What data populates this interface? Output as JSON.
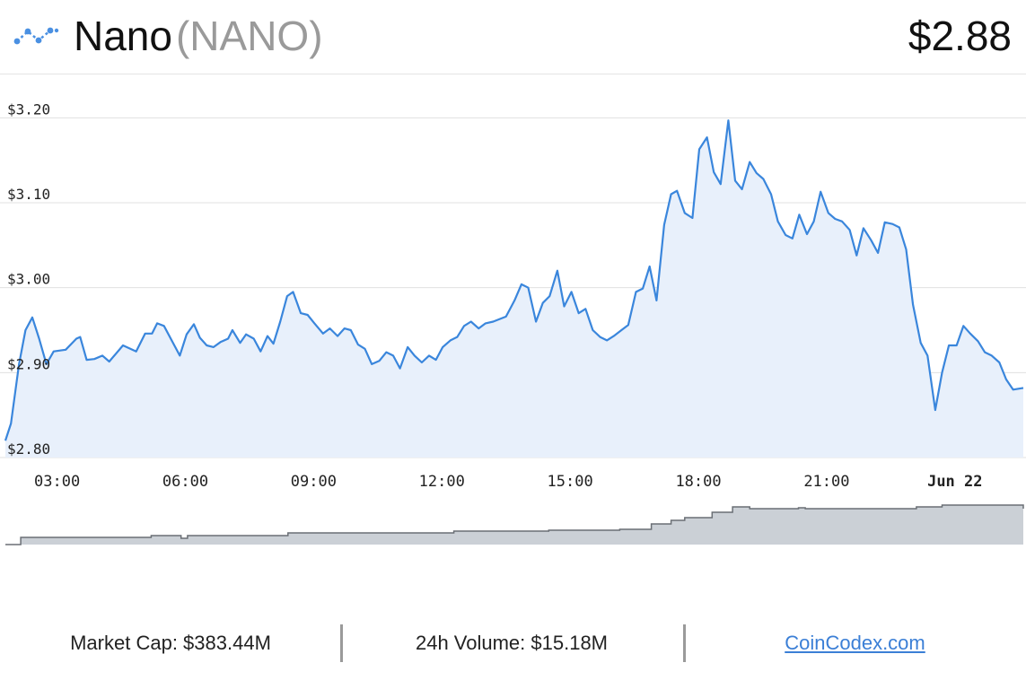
{
  "header": {
    "name": "Nano",
    "symbol": "(NANO)",
    "price": "$2.88",
    "icon": "nano-logo-icon"
  },
  "footer": {
    "market_cap": "Market Cap: $383.44M",
    "volume": "24h Volume: $15.18M",
    "source_link": "CoinCodex.com"
  },
  "colors": {
    "line": "#3a86dc",
    "area": "#e8f0fb",
    "grid": "#e0e0e0",
    "volume": "#cbd0d6",
    "volume_line": "#6a6f75",
    "link": "#3b7fd6"
  },
  "chart_data": {
    "type": "area",
    "ylim": [
      2.8,
      3.25
    ],
    "grid": true,
    "y_ticks": [
      {
        "value": 3.2,
        "label": "$3.20"
      },
      {
        "value": 3.1,
        "label": "$3.10"
      },
      {
        "value": 3.0,
        "label": "$3.00"
      },
      {
        "value": 2.9,
        "label": "$2.90"
      },
      {
        "value": 2.8,
        "label": "$2.80"
      }
    ],
    "x_ticks": [
      {
        "hour": 3,
        "label": "03:00",
        "bold": false
      },
      {
        "hour": 6,
        "label": "06:00",
        "bold": false
      },
      {
        "hour": 9,
        "label": "09:00",
        "bold": false
      },
      {
        "hour": 12,
        "label": "12:00",
        "bold": false
      },
      {
        "hour": 15,
        "label": "15:00",
        "bold": false
      },
      {
        "hour": 18,
        "label": "18:00",
        "bold": false
      },
      {
        "hour": 21,
        "label": "21:00",
        "bold": false
      },
      {
        "hour": 24,
        "label": "Jun 22",
        "bold": true
      }
    ],
    "xlim": [
      1.79,
      25.6
    ],
    "price_series": [
      [
        1.79,
        2.82
      ],
      [
        1.92,
        2.84
      ],
      [
        2.11,
        2.91
      ],
      [
        2.26,
        2.95
      ],
      [
        2.42,
        2.965
      ],
      [
        2.58,
        2.94
      ],
      [
        2.75,
        2.91
      ],
      [
        2.92,
        2.925
      ],
      [
        3.2,
        2.927
      ],
      [
        3.45,
        2.94
      ],
      [
        3.54,
        2.942
      ],
      [
        3.69,
        2.915
      ],
      [
        3.87,
        2.916
      ],
      [
        4.06,
        2.92
      ],
      [
        4.22,
        2.913
      ],
      [
        4.54,
        2.932
      ],
      [
        4.85,
        2.925
      ],
      [
        5.06,
        2.946
      ],
      [
        5.22,
        2.946
      ],
      [
        5.34,
        2.958
      ],
      [
        5.5,
        2.955
      ],
      [
        5.87,
        2.92
      ],
      [
        6.03,
        2.945
      ],
      [
        6.2,
        2.957
      ],
      [
        6.34,
        2.941
      ],
      [
        6.5,
        2.932
      ],
      [
        6.66,
        2.93
      ],
      [
        6.82,
        2.936
      ],
      [
        7.0,
        2.94
      ],
      [
        7.1,
        2.95
      ],
      [
        7.28,
        2.935
      ],
      [
        7.42,
        2.945
      ],
      [
        7.6,
        2.94
      ],
      [
        7.76,
        2.925
      ],
      [
        7.92,
        2.943
      ],
      [
        8.06,
        2.934
      ],
      [
        8.22,
        2.96
      ],
      [
        8.38,
        2.99
      ],
      [
        8.52,
        2.995
      ],
      [
        8.7,
        2.97
      ],
      [
        8.86,
        2.968
      ],
      [
        9.02,
        2.958
      ],
      [
        9.22,
        2.946
      ],
      [
        9.38,
        2.952
      ],
      [
        9.56,
        2.943
      ],
      [
        9.72,
        2.952
      ],
      [
        9.87,
        2.95
      ],
      [
        10.04,
        2.933
      ],
      [
        10.2,
        2.928
      ],
      [
        10.36,
        2.91
      ],
      [
        10.54,
        2.914
      ],
      [
        10.7,
        2.924
      ],
      [
        10.86,
        2.92
      ],
      [
        11.02,
        2.905
      ],
      [
        11.2,
        2.93
      ],
      [
        11.36,
        2.92
      ],
      [
        11.53,
        2.912
      ],
      [
        11.7,
        2.92
      ],
      [
        11.86,
        2.915
      ],
      [
        12.02,
        2.93
      ],
      [
        12.2,
        2.938
      ],
      [
        12.36,
        2.942
      ],
      [
        12.52,
        2.955
      ],
      [
        12.68,
        2.96
      ],
      [
        12.86,
        2.952
      ],
      [
        13.02,
        2.958
      ],
      [
        13.2,
        2.96
      ],
      [
        13.5,
        2.966
      ],
      [
        13.7,
        2.985
      ],
      [
        13.86,
        3.004
      ],
      [
        14.02,
        3.0
      ],
      [
        14.2,
        2.96
      ],
      [
        14.36,
        2.982
      ],
      [
        14.52,
        2.99
      ],
      [
        14.7,
        3.02
      ],
      [
        14.86,
        2.978
      ],
      [
        15.03,
        2.995
      ],
      [
        15.2,
        2.97
      ],
      [
        15.36,
        2.975
      ],
      [
        15.53,
        2.95
      ],
      [
        15.7,
        2.942
      ],
      [
        15.86,
        2.938
      ],
      [
        16.02,
        2.943
      ],
      [
        16.2,
        2.95
      ],
      [
        16.36,
        2.956
      ],
      [
        16.54,
        2.995
      ],
      [
        16.7,
        2.999
      ],
      [
        16.86,
        3.025
      ],
      [
        17.02,
        2.985
      ],
      [
        17.2,
        3.074
      ],
      [
        17.36,
        3.11
      ],
      [
        17.5,
        3.114
      ],
      [
        17.68,
        3.088
      ],
      [
        17.86,
        3.082
      ],
      [
        18.02,
        3.163
      ],
      [
        18.2,
        3.177
      ],
      [
        18.36,
        3.136
      ],
      [
        18.52,
        3.122
      ],
      [
        18.7,
        3.197
      ],
      [
        18.86,
        3.126
      ],
      [
        19.02,
        3.116
      ],
      [
        19.2,
        3.148
      ],
      [
        19.36,
        3.135
      ],
      [
        19.52,
        3.128
      ],
      [
        19.7,
        3.11
      ],
      [
        19.86,
        3.078
      ],
      [
        20.04,
        3.062
      ],
      [
        20.2,
        3.058
      ],
      [
        20.36,
        3.086
      ],
      [
        20.54,
        3.063
      ],
      [
        20.7,
        3.078
      ],
      [
        20.86,
        3.113
      ],
      [
        21.04,
        3.088
      ],
      [
        21.2,
        3.081
      ],
      [
        21.36,
        3.078
      ],
      [
        21.54,
        3.068
      ],
      [
        21.7,
        3.038
      ],
      [
        21.86,
        3.07
      ],
      [
        22.04,
        3.056
      ],
      [
        22.2,
        3.041
      ],
      [
        22.36,
        3.077
      ],
      [
        22.54,
        3.075
      ],
      [
        22.7,
        3.071
      ],
      [
        22.86,
        3.045
      ],
      [
        23.02,
        2.98
      ],
      [
        23.2,
        2.935
      ],
      [
        23.36,
        2.92
      ],
      [
        23.54,
        2.856
      ],
      [
        23.7,
        2.9
      ],
      [
        23.86,
        2.932
      ],
      [
        24.04,
        2.932
      ],
      [
        24.2,
        2.955
      ],
      [
        24.36,
        2.946
      ],
      [
        24.54,
        2.937
      ],
      [
        24.7,
        2.924
      ],
      [
        24.86,
        2.92
      ],
      [
        25.04,
        2.912
      ],
      [
        25.2,
        2.892
      ],
      [
        25.36,
        2.88
      ],
      [
        25.6,
        2.882
      ]
    ],
    "volume_series": [
      [
        1.79,
        0.0
      ],
      [
        2.15,
        0.08
      ],
      [
        5.2,
        0.1
      ],
      [
        5.9,
        0.07
      ],
      [
        6.05,
        0.1
      ],
      [
        7.76,
        0.1
      ],
      [
        8.4,
        0.13
      ],
      [
        11.9,
        0.13
      ],
      [
        12.28,
        0.15
      ],
      [
        14.5,
        0.16
      ],
      [
        16.16,
        0.17
      ],
      [
        16.9,
        0.23
      ],
      [
        17.36,
        0.27
      ],
      [
        17.68,
        0.3
      ],
      [
        18.32,
        0.36
      ],
      [
        18.8,
        0.42
      ],
      [
        19.2,
        0.4
      ],
      [
        20.34,
        0.41
      ],
      [
        20.5,
        0.4
      ],
      [
        23.1,
        0.42
      ],
      [
        23.7,
        0.44
      ],
      [
        25.52,
        0.44
      ],
      [
        25.6,
        0.4
      ]
    ]
  }
}
